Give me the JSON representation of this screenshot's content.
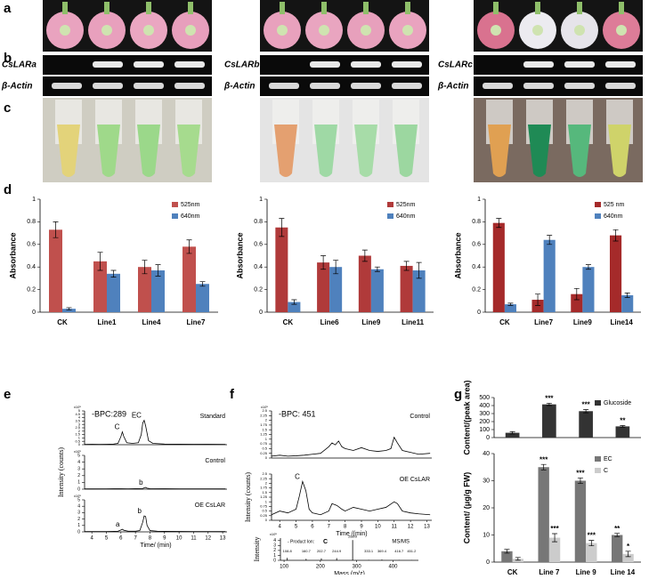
{
  "figure": {
    "panel_labels": [
      "a",
      "b",
      "c",
      "d",
      "e",
      "f",
      "g"
    ],
    "gel_genes": [
      "CsLARa",
      "CsLARb",
      "CsLARc"
    ],
    "gel_reference": "β-Actin"
  },
  "chart_data": [
    {
      "type": "bar",
      "categories": [
        "CK",
        "Line1",
        "Line4",
        "Line7"
      ],
      "series": [
        {
          "name": "525nm",
          "color": "#c0504d",
          "values": [
            0.73,
            0.45,
            0.4,
            0.58
          ],
          "errors": [
            0.07,
            0.08,
            0.06,
            0.06
          ]
        },
        {
          "name": "640nm",
          "color": "#4f81bd",
          "values": [
            0.03,
            0.34,
            0.37,
            0.25
          ],
          "errors": [
            0.01,
            0.03,
            0.05,
            0.02
          ]
        }
      ],
      "ylabel": "Absorbance",
      "ylim": [
        0,
        1
      ],
      "yticks": [
        0,
        0.2,
        0.4,
        0.6,
        0.8,
        1
      ]
    },
    {
      "type": "bar",
      "categories": [
        "CK",
        "Line6",
        "Line9",
        "Line11"
      ],
      "series": [
        {
          "name": "525nm",
          "color": "#b03a3a",
          "values": [
            0.75,
            0.44,
            0.5,
            0.41
          ],
          "errors": [
            0.08,
            0.06,
            0.05,
            0.04
          ]
        },
        {
          "name": "640nm",
          "color": "#4f81bd",
          "values": [
            0.09,
            0.4,
            0.38,
            0.37
          ],
          "errors": [
            0.02,
            0.06,
            0.02,
            0.07
          ]
        }
      ],
      "ylabel": "Absorbance",
      "ylim": [
        0,
        1
      ],
      "yticks": [
        0,
        0.2,
        0.4,
        0.6,
        0.8,
        1
      ]
    },
    {
      "type": "bar",
      "categories": [
        "CK",
        "Line7",
        "Line9",
        "Line14"
      ],
      "series": [
        {
          "name": "525 nm",
          "color": "#a52a2a",
          "values": [
            0.79,
            0.11,
            0.16,
            0.68
          ],
          "errors": [
            0.04,
            0.05,
            0.05,
            0.05
          ]
        },
        {
          "name": "640nm",
          "color": "#4f81bd",
          "values": [
            0.07,
            0.64,
            0.4,
            0.15
          ],
          "errors": [
            0.01,
            0.04,
            0.02,
            0.02
          ]
        }
      ],
      "ylabel": "Absorbance",
      "ylim": [
        0,
        1
      ],
      "yticks": [
        0,
        0.2,
        0.4,
        0.6,
        0.8,
        1
      ]
    },
    {
      "type": "line",
      "title": "-BPC:289",
      "y_unit": "x10⁵",
      "x": [
        3.5,
        4,
        4.5,
        5,
        5.5,
        5.8,
        6.0,
        6.1,
        6.2,
        6.4,
        6.8,
        7.2,
        7.4,
        7.5,
        7.6,
        7.7,
        7.9,
        8.2,
        9,
        10,
        11,
        12,
        13.2
      ],
      "series": [
        {
          "name": "Standard",
          "color": "#000000",
          "values": [
            0.05,
            0.06,
            0.05,
            0.07,
            0.1,
            0.2,
            1.2,
            1.9,
            1.2,
            0.3,
            0.2,
            0.3,
            1.5,
            3.2,
            3.6,
            2.8,
            0.6,
            0.2,
            0.1,
            0.08,
            0.07,
            0.06,
            0.05
          ]
        }
      ],
      "annotations": [
        {
          "text": "C",
          "x": 6.1
        },
        {
          "text": "EC",
          "x": 7.6
        }
      ],
      "xlim": [
        3.5,
        13.3
      ],
      "ylim": [
        0,
        5
      ],
      "yticks": [
        0,
        0.5,
        1,
        1.5,
        2,
        2.5,
        3,
        3.5,
        4,
        4.5,
        5
      ]
    },
    {
      "type": "line",
      "y_unit": "x10⁵",
      "ylabel": "Intensity (counts)",
      "x": [
        3.5,
        4,
        5,
        6,
        6.5,
        7,
        7.5,
        7.6,
        7.7,
        7.8,
        8,
        9,
        10,
        11,
        12,
        13.2
      ],
      "series": [
        {
          "name": "Control",
          "color": "#000000",
          "values": [
            0.05,
            0.04,
            0.05,
            0.06,
            0.05,
            0.08,
            0.1,
            0.2,
            0.25,
            0.15,
            0.08,
            0.06,
            0.05,
            0.05,
            0.05,
            0.04
          ]
        }
      ],
      "annotations": [
        {
          "text": "b",
          "x": 7.7
        }
      ],
      "xlim": [
        3.5,
        13.3
      ],
      "ylim": [
        0,
        5
      ],
      "yticks": [
        0,
        1,
        2,
        3,
        4,
        5
      ]
    },
    {
      "type": "line",
      "y_unit": "x10⁵",
      "xlabel": "Time/ (min)",
      "x": [
        3.5,
        4,
        5,
        5.8,
        6,
        6.1,
        6.2,
        6.5,
        7,
        7.3,
        7.5,
        7.6,
        7.7,
        7.8,
        8,
        8.5,
        9,
        10,
        11,
        12,
        13.2
      ],
      "series": [
        {
          "name": "OE CsLAR",
          "color": "#000000",
          "values": [
            0.05,
            0.05,
            0.05,
            0.1,
            0.3,
            0.4,
            0.25,
            0.1,
            0.1,
            0.2,
            1.5,
            2.5,
            2.4,
            1,
            0.2,
            0.1,
            0.08,
            0.06,
            0.05,
            0.05,
            0.04
          ]
        }
      ],
      "annotations": [
        {
          "text": "a",
          "x": 6.1
        },
        {
          "text": "b",
          "x": 7.6
        }
      ],
      "xlim": [
        3.5,
        13.3
      ],
      "ylim": [
        0,
        5
      ],
      "yticks": [
        0,
        1,
        2,
        3,
        4,
        5
      ],
      "xticks": [
        4,
        5,
        6,
        7,
        8,
        9,
        10,
        11,
        12,
        13
      ]
    },
    {
      "type": "line",
      "title": "-BPC: 451",
      "y_unit": "x10⁵",
      "x": [
        3.5,
        4,
        4.5,
        5,
        5.5,
        6,
        6.5,
        7,
        7.2,
        7.4,
        7.6,
        7.8,
        8,
        8.5,
        9,
        9.5,
        10,
        10.5,
        10.8,
        11,
        11.2,
        11.5,
        12,
        12.5,
        13.2
      ],
      "series": [
        {
          "name": "Control",
          "color": "#000000",
          "values": [
            0.1,
            0.15,
            0.1,
            0.12,
            0.15,
            0.2,
            0.25,
            0.6,
            0.8,
            0.7,
            0.9,
            0.6,
            0.5,
            0.4,
            0.55,
            0.4,
            0.35,
            0.4,
            0.5,
            1.1,
            0.8,
            0.4,
            0.3,
            0.2,
            0.25
          ]
        }
      ],
      "xlim": [
        3.5,
        13.3
      ],
      "ylim": [
        0,
        2.5
      ],
      "yticks": [
        0,
        0.25,
        0.5,
        0.75,
        1,
        1.25,
        1.5,
        1.75,
        2,
        2.25,
        2.5
      ]
    },
    {
      "type": "line",
      "ylabel": "Intensity (counts)",
      "xlabel": "Time /(min)",
      "x": [
        3.5,
        4,
        4.5,
        5,
        5.2,
        5.4,
        5.6,
        5.8,
        6,
        6.5,
        7,
        7.2,
        7.5,
        7.8,
        8,
        8.5,
        9,
        9.5,
        10,
        10.5,
        11,
        11.2,
        11.5,
        12,
        12.5,
        13.2
      ],
      "series": [
        {
          "name": "OE CsLAR",
          "color": "#000000",
          "values": [
            0.3,
            0.5,
            0.4,
            0.6,
            1.3,
            2.1,
            1.6,
            0.6,
            0.4,
            0.3,
            0.5,
            0.9,
            0.8,
            0.6,
            0.5,
            0.7,
            0.6,
            0.5,
            0.6,
            0.7,
            1.0,
            0.9,
            0.5,
            0.4,
            0.35,
            0.3
          ]
        }
      ],
      "annotations": [
        {
          "text": "C",
          "x": 5.4
        }
      ],
      "xlim": [
        3.5,
        13.3
      ],
      "ylim": [
        0,
        2.5
      ],
      "yticks": [
        0,
        0.25,
        0.5,
        0.75,
        1,
        1.25,
        1.5,
        1.75,
        2,
        2.25,
        2.5
      ],
      "xticks": [
        4,
        5,
        6,
        7,
        8,
        9,
        10,
        11,
        12,
        13
      ]
    },
    {
      "type": "spectrum",
      "title": "- Product Ion:",
      "subtitle": "C",
      "y_unit": "x10⁵",
      "ylabel": "Intensity",
      "xlabel": "Mass (m/z)",
      "x": [
        108.8,
        160.7,
        202.7,
        244.9,
        288.9,
        333.1,
        369.4,
        416.7,
        451.2
      ],
      "series": [
        {
          "name": "MS/MS",
          "color": "#000000",
          "values": [
            0.5,
            0.3,
            0.4,
            0.45,
            4.1,
            0.1,
            0.15,
            0.08,
            0.05
          ]
        }
      ],
      "xlim": [
        90,
        470
      ],
      "xticks": [
        100,
        200,
        300,
        400
      ],
      "ylim": [
        0,
        4.5
      ],
      "yticks": [
        0,
        1,
        2,
        3,
        4
      ]
    },
    {
      "type": "bar",
      "categories": [
        null,
        null,
        null,
        null
      ],
      "series": [
        {
          "name": "Glucoside",
          "color": "#333333",
          "values": [
            60,
            415,
            330,
            140
          ],
          "errors": [
            15,
            15,
            20,
            10
          ],
          "significance": [
            null,
            "***",
            "***",
            "**"
          ]
        }
      ],
      "ylabel": "Content/(peak area)",
      "ylim": [
        0,
        500
      ],
      "yticks": [
        0,
        100,
        200,
        300,
        400,
        500
      ]
    },
    {
      "type": "bar",
      "categories": [
        "CK",
        "Line 7",
        "Line 9",
        "Line 14"
      ],
      "series": [
        {
          "name": "EC",
          "color": "#777777",
          "values": [
            4,
            35,
            30,
            10
          ],
          "errors": [
            0.7,
            1,
            1,
            0.6
          ],
          "significance": [
            null,
            "***",
            "***",
            "**"
          ]
        },
        {
          "name": "C",
          "color": "#cccccc",
          "values": [
            1.2,
            9,
            7,
            3
          ],
          "errors": [
            0.5,
            1.5,
            1,
            1
          ],
          "significance": [
            null,
            "***",
            "***",
            "*"
          ]
        }
      ],
      "ylabel": "Content/ (μg/g FW)",
      "ylim": [
        0,
        40
      ],
      "yticks": [
        0,
        10,
        20,
        30,
        40
      ]
    }
  ]
}
